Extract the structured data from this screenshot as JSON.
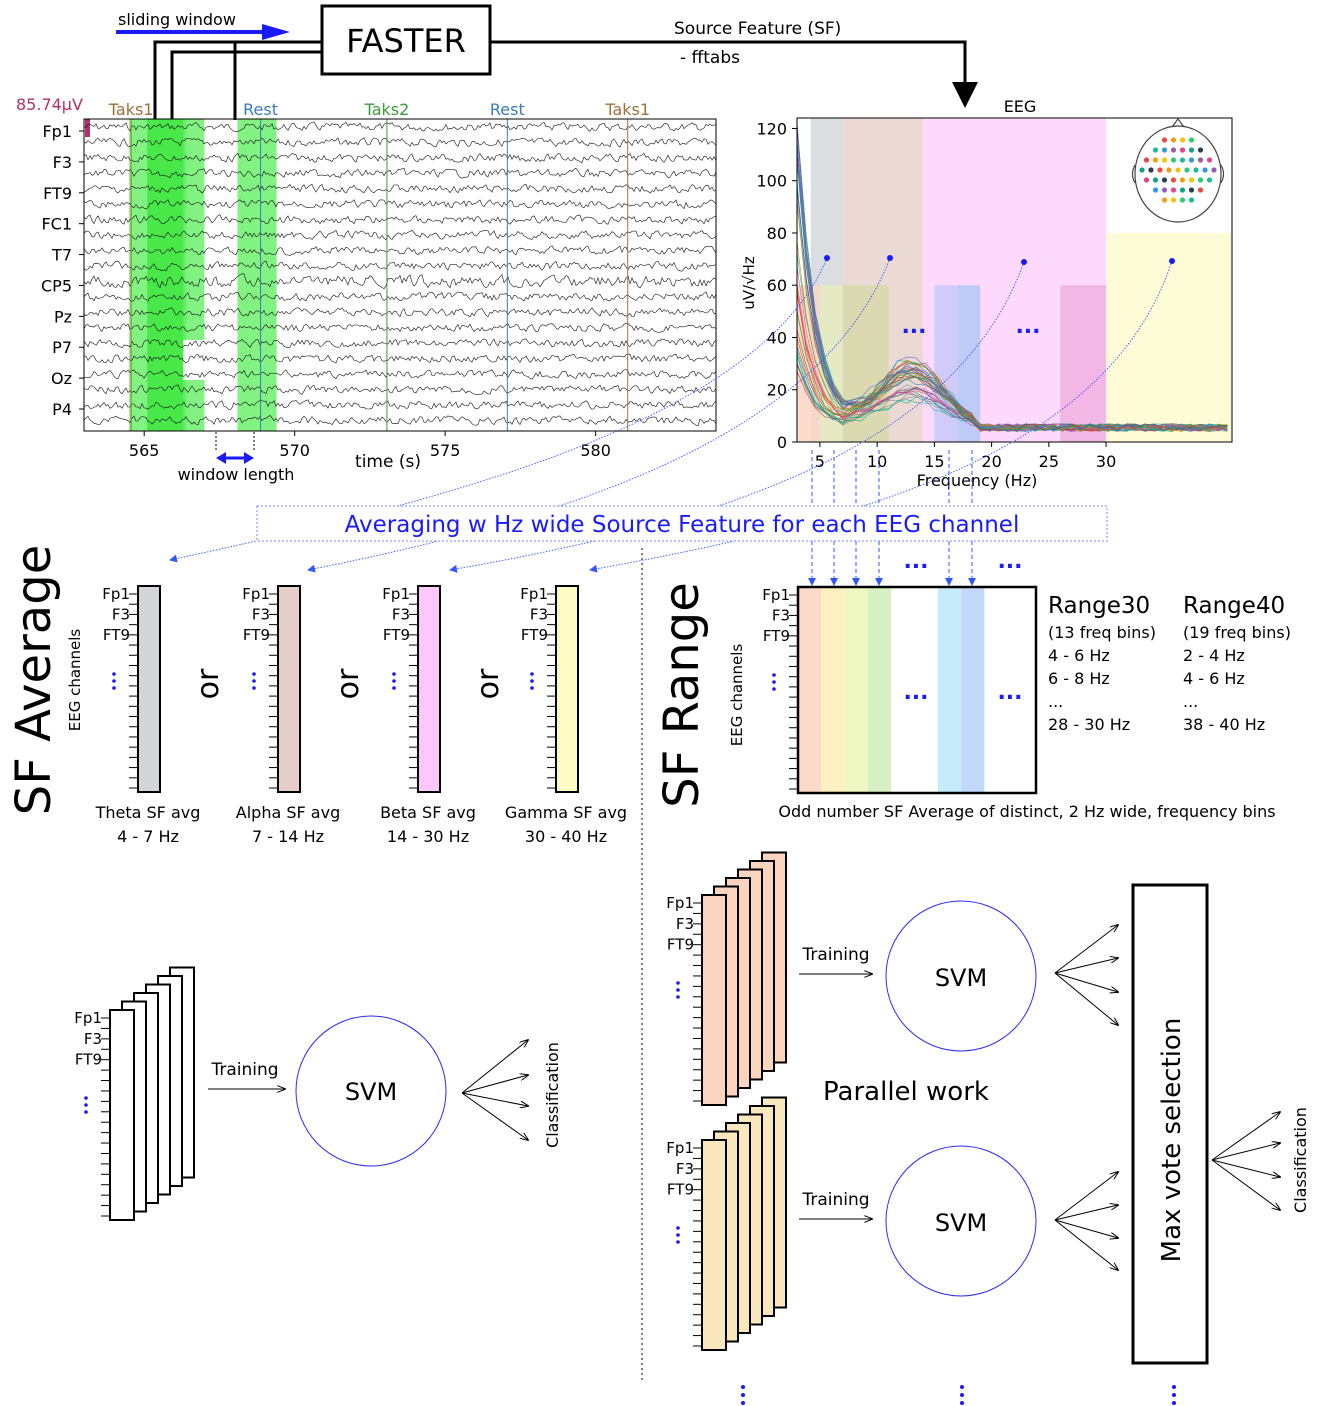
{
  "pipeline": {
    "sliding_window": "sliding window",
    "faster": "FASTER",
    "source_feature": "Source Feature (SF)",
    "fftabs": "- fftabs",
    "window_length": "window length"
  },
  "eeg_plot": {
    "scale": "85.74µV",
    "channels": [
      "Fp1",
      "F3",
      "FT9",
      "FC1",
      "T7",
      "CP5",
      "Pz",
      "P7",
      "Oz",
      "P4"
    ],
    "events": [
      {
        "label": "Taks1",
        "time": 564.4,
        "color": "#a0703a"
      },
      {
        "label": "Rest",
        "time": 568.7,
        "color": "#3a7bbf"
      },
      {
        "label": "Taks2",
        "time": 572.9,
        "color": "#3a9a3a"
      },
      {
        "label": "Rest",
        "time": 576.9,
        "color": "#3a7bbf"
      },
      {
        "label": "Taks1",
        "time": 580.9,
        "color": "#a0703a"
      }
    ],
    "xticks": [
      "565",
      "570",
      "575",
      "580"
    ],
    "xlabel": "time (s)",
    "xlim": [
      563,
      584
    ]
  },
  "spectrum": {
    "title": "EEG",
    "ylabel": "uV/√Hz",
    "xlabel": "Frequency (Hz)",
    "yticks": [
      "0",
      "20",
      "40",
      "60",
      "80",
      "100",
      "120"
    ],
    "xticks": [
      "5",
      "10",
      "15",
      "20",
      "25",
      "30"
    ],
    "ylim": [
      0,
      124
    ],
    "xlim": [
      3,
      41
    ],
    "ellipsis": "..."
  },
  "banner": "Averaging w Hz wide Source Feature for each EEG channel",
  "sf_average": {
    "title": "SF Average",
    "ylabel": "EEG channels",
    "or": "or",
    "channel_labels": [
      "Fp1",
      "F3",
      "FT9"
    ],
    "bands": [
      {
        "name": "Theta SF avg",
        "range": "4 - 7 Hz",
        "color": "#d2d6d9"
      },
      {
        "name": "Alpha SF avg",
        "range": "7 - 14 Hz",
        "color": "#e6cfc8"
      },
      {
        "name": "Beta SF avg",
        "range": "14 - 30 Hz",
        "color": "#fcc8fc"
      },
      {
        "name": "Gamma SF avg",
        "range": "30 - 40 Hz",
        "color": "#fcfcc4"
      }
    ],
    "training": "Training",
    "svm": "SVM",
    "classification": "Classification"
  },
  "sf_range": {
    "title": "SF Range",
    "ylabel": "EEG channels",
    "channel_labels": [
      "Fp1",
      "F3",
      "FT9"
    ],
    "caption": "Odd number SF Average of distinct, 2 Hz wide, frequency bins",
    "range30": {
      "title": "Range30",
      "bins": "(13 freq bins)",
      "rows": [
        "4 - 6 Hz",
        "6 - 8 Hz",
        "...",
        "28 - 30 Hz"
      ]
    },
    "range40": {
      "title": "Range40",
      "bins": "(19 freq bins)",
      "rows": [
        "2 - 4 Hz",
        "4 - 6 Hz",
        "...",
        "38 - 40 Hz"
      ]
    },
    "training": "Training",
    "svm": "SVM",
    "parallel": "Parallel work",
    "max_vote": "Max vote selection",
    "classification": "Classification"
  }
}
